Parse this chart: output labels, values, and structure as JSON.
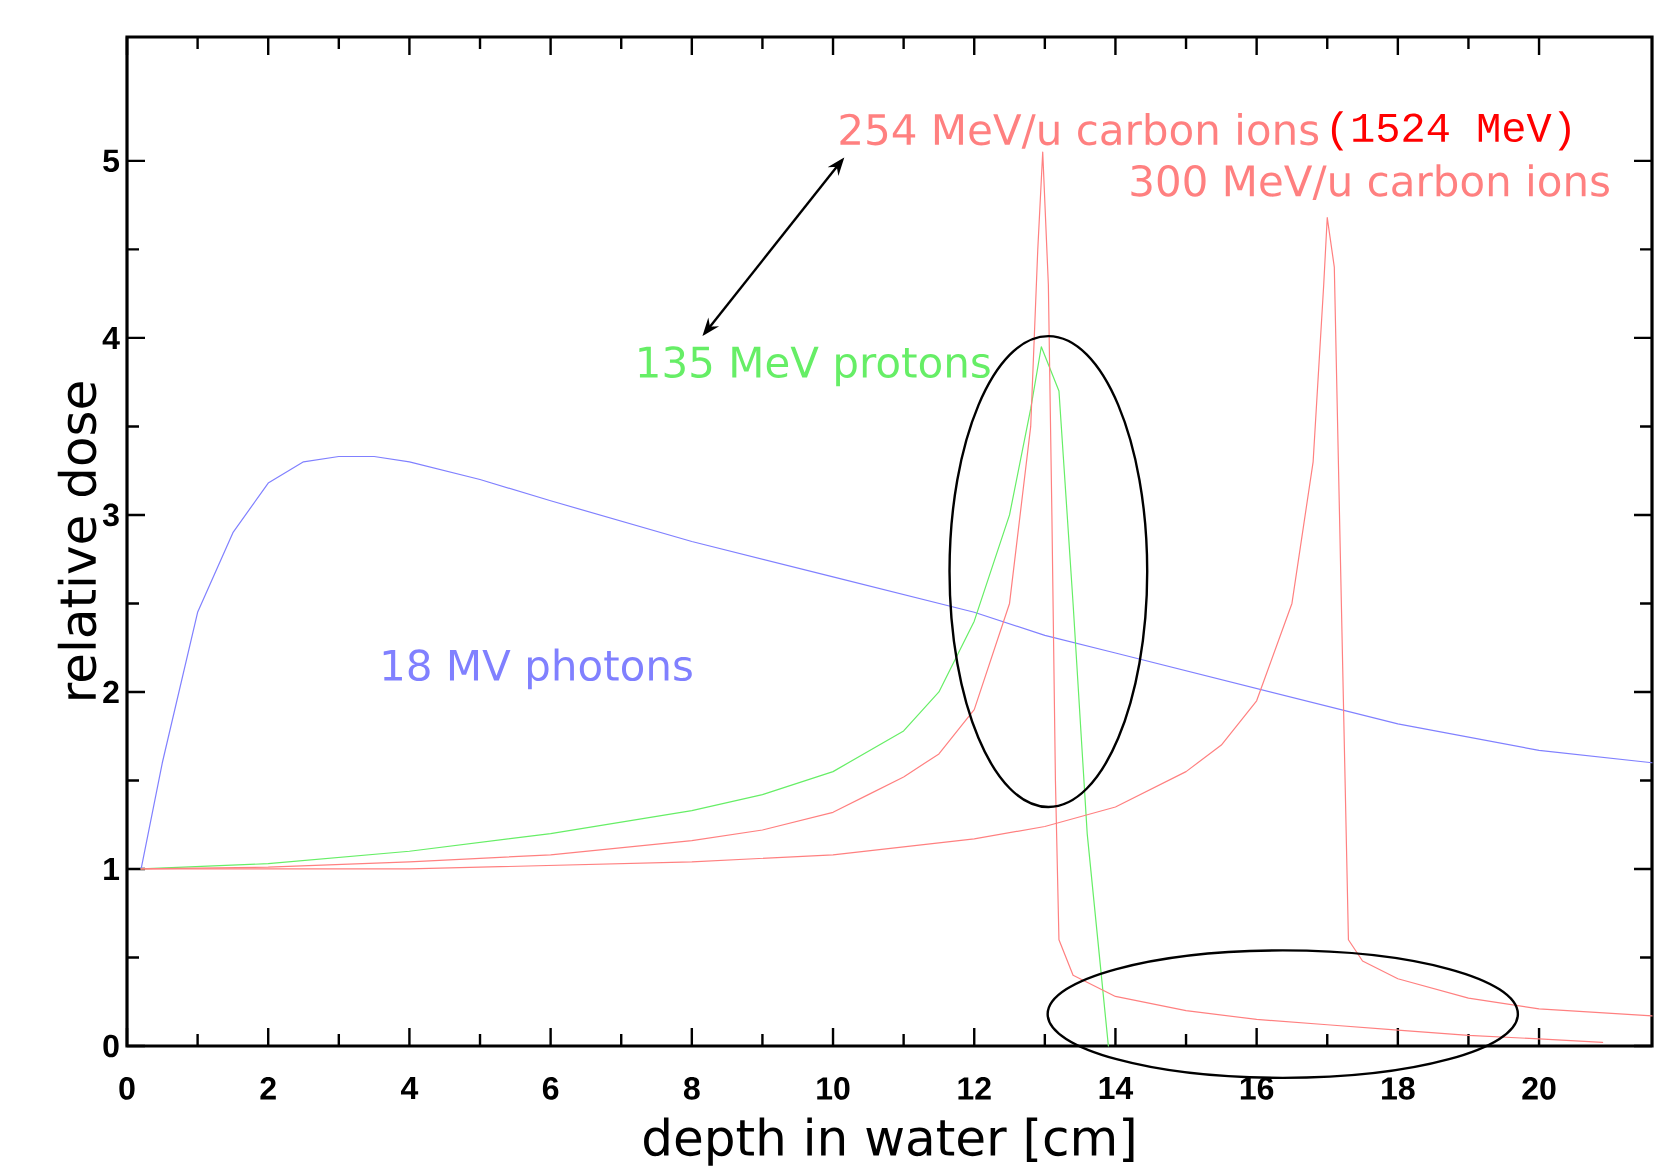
{
  "chart_data": {
    "type": "line",
    "xlabel": "depth in water [cm]",
    "ylabel": "relative dose",
    "xlim": [
      0,
      21.6
    ],
    "ylim": [
      0,
      5.7
    ],
    "xticks": [
      0,
      2,
      4,
      6,
      8,
      10,
      12,
      14,
      16,
      18,
      20
    ],
    "yticks": [
      0,
      1,
      2,
      3,
      4,
      5
    ],
    "grid": false,
    "marker": "none",
    "line_style": "solid",
    "annotations": [
      "(1524 MeV)"
    ],
    "series": [
      {
        "name": "18 MV photons",
        "color": "#8080ff",
        "x": [
          0.2,
          0.5,
          1,
          1.5,
          2,
          2.5,
          3,
          3.5,
          4,
          5,
          6,
          8,
          10,
          12,
          13,
          14,
          16,
          18,
          20,
          21.6
        ],
        "values": [
          1.0,
          1.6,
          2.45,
          2.9,
          3.18,
          3.3,
          3.33,
          3.33,
          3.3,
          3.2,
          3.08,
          2.85,
          2.65,
          2.45,
          2.32,
          2.22,
          2.02,
          1.82,
          1.67,
          1.6
        ]
      },
      {
        "name": "135 MeV protons",
        "color": "#66ee66",
        "x": [
          0.2,
          2,
          4,
          6,
          8,
          9,
          10,
          11,
          11.5,
          12,
          12.5,
          12.8,
          12.95,
          13.2,
          13.4,
          13.6,
          13.8,
          13.9
        ],
        "values": [
          1.0,
          1.03,
          1.1,
          1.2,
          1.33,
          1.42,
          1.55,
          1.78,
          2.0,
          2.4,
          3.0,
          3.6,
          3.95,
          3.7,
          2.5,
          1.2,
          0.4,
          0.0
        ]
      },
      {
        "name": "254 MeV/u carbon ions",
        "color": "#ff8080",
        "x": [
          0.2,
          2,
          4,
          6,
          8,
          9,
          10,
          10.5,
          11,
          11.5,
          12,
          12.5,
          12.8,
          12.9,
          12.97,
          13.05,
          13.1,
          13.15,
          13.2,
          13.4,
          14,
          15,
          16,
          17,
          18,
          19,
          20,
          20.9
        ],
        "values": [
          1.0,
          1.01,
          1.04,
          1.08,
          1.16,
          1.22,
          1.32,
          1.42,
          1.52,
          1.65,
          1.9,
          2.5,
          3.5,
          4.5,
          5.05,
          4.3,
          3.0,
          1.5,
          0.6,
          0.4,
          0.28,
          0.2,
          0.15,
          0.12,
          0.09,
          0.06,
          0.04,
          0.02
        ]
      },
      {
        "name": "300 MeV/u carbon ions",
        "color": "#ff8080",
        "x": [
          0.2,
          4,
          8,
          10,
          12,
          13,
          14,
          15,
          15.5,
          16,
          16.5,
          16.8,
          16.95,
          17.0,
          17.1,
          17.2,
          17.3,
          17.5,
          18,
          19,
          20,
          21.6
        ],
        "values": [
          1.0,
          1.0,
          1.04,
          1.08,
          1.17,
          1.24,
          1.35,
          1.55,
          1.7,
          1.95,
          2.5,
          3.3,
          4.3,
          4.68,
          4.4,
          2.5,
          0.6,
          0.48,
          0.38,
          0.27,
          0.21,
          0.17
        ]
      }
    ]
  }
}
